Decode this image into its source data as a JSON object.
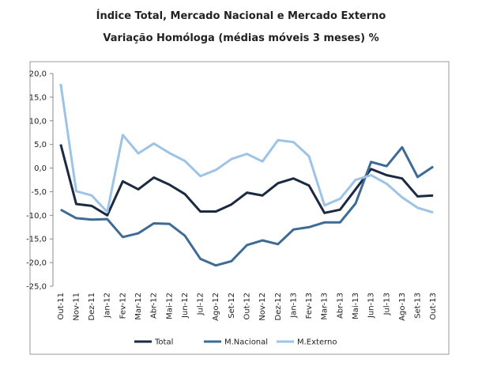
{
  "chart_data": {
    "type": "line",
    "title": "Índice Total, Mercado Nacional e Mercado Externo",
    "subtitle": "Variação Homóloga (médias móveis 3 meses) %",
    "categories": [
      "Out-11",
      "Nov-11",
      "Dez-11",
      "Jan-12",
      "Fev-12",
      "Mar-12",
      "Abr-12",
      "Mai-12",
      "Jun-12",
      "Jul-12",
      "Ago-12",
      "Set-12",
      "Out-12",
      "Nov-12",
      "Dez-12",
      "Jan-13",
      "Fev-13",
      "Mar-13",
      "Abr-13",
      "Mai-13",
      "Jun-13",
      "Jul-13",
      "Ago-13",
      "Set-13",
      "Out-13"
    ],
    "series": [
      {
        "name": "Total",
        "color": "#1b2a41",
        "values": [
          5,
          -7.6,
          -8,
          -10,
          -2.8,
          -4.5,
          -2,
          -3.5,
          -5.5,
          -9.2,
          -9.2,
          -7.7,
          -5.2,
          -5.8,
          -3.2,
          -2.2,
          -3.7,
          -9.5,
          -8.8,
          -4.5,
          -0.2,
          -1.5,
          -2.2,
          -6,
          -5.8
        ]
      },
      {
        "name": "M.Nacional",
        "color": "#3e6a96",
        "values": [
          -8.8,
          -10.6,
          -10.9,
          -10.8,
          -14.6,
          -13.8,
          -11.7,
          -11.8,
          -14.3,
          -19.2,
          -20.6,
          -19.7,
          -16.3,
          -15.3,
          -16.1,
          -13,
          -12.5,
          -11.5,
          -11.5,
          -7.5,
          1.3,
          0.4,
          4.4,
          -1.9,
          0.3
        ]
      },
      {
        "name": "M.Externo",
        "color": "#9dc3e6",
        "values": [
          17.8,
          -4.9,
          -5.8,
          -9.3,
          7,
          3.1,
          5.2,
          3.2,
          1.5,
          -1.7,
          -0.4,
          1.9,
          3,
          1.4,
          5.9,
          5.5,
          2.5,
          -7.9,
          -6.5,
          -2.5,
          -1.5,
          -3.3,
          -6.2,
          -8.4,
          -9.4
        ]
      }
    ],
    "ylim": [
      -25,
      20
    ],
    "yticks": [
      {
        "value": -25,
        "label": "-25,0"
      },
      {
        "value": -20,
        "label": "-20,0"
      },
      {
        "value": -15,
        "label": "-15,0"
      },
      {
        "value": -10,
        "label": "-10,0"
      },
      {
        "value": -5,
        "label": "-5,0"
      },
      {
        "value": 0,
        "label": "0,0"
      },
      {
        "value": 5,
        "label": "5,0"
      },
      {
        "value": 10,
        "label": "10,0"
      },
      {
        "value": 15,
        "label": "15,0"
      },
      {
        "value": 20,
        "label": "20,0"
      }
    ],
    "grid": false,
    "legend": "bottom"
  }
}
